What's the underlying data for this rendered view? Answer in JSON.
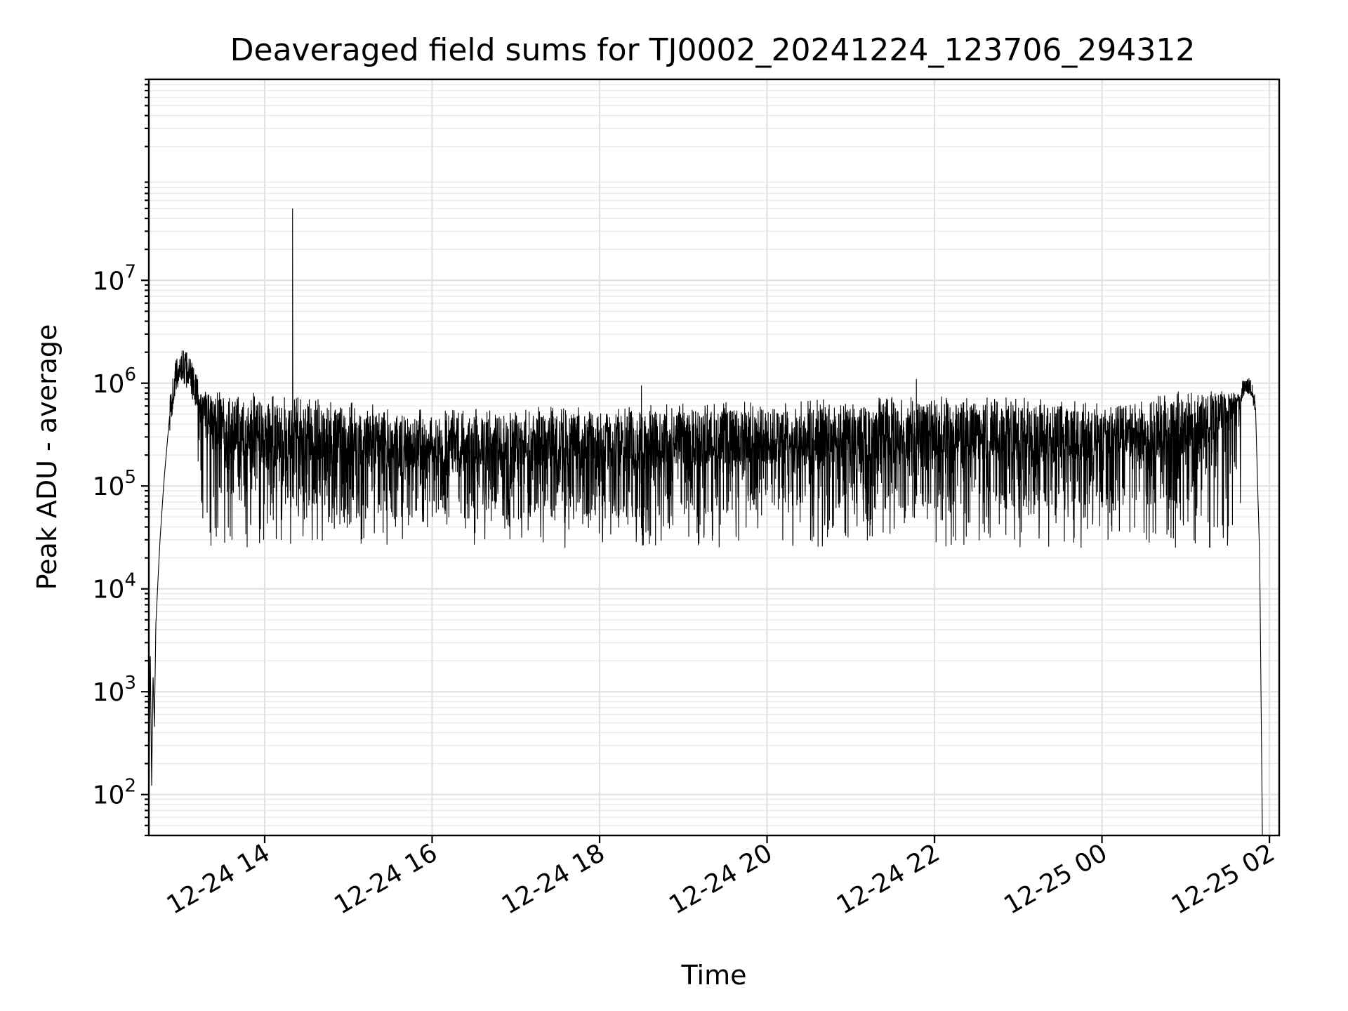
{
  "chart_data": {
    "type": "line",
    "title": "Deaveraged field sums for TJ0002_20241224_123706_294312",
    "xlabel": "Time",
    "ylabel": "Peak ADU - average",
    "y_scale": "log",
    "ylim": [
      40,
      900000000
    ],
    "xlim": [
      "2024-12-24 12:37",
      "2024-12-25 02:07"
    ],
    "grid": true,
    "grid_minor": true,
    "line_color": "#000000",
    "x_ticks": [
      {
        "value": "2024-12-24 14:00",
        "label": "12-24 14"
      },
      {
        "value": "2024-12-24 16:00",
        "label": "12-24 16"
      },
      {
        "value": "2024-12-24 18:00",
        "label": "12-24 18"
      },
      {
        "value": "2024-12-24 20:00",
        "label": "12-24 20"
      },
      {
        "value": "2024-12-24 22:00",
        "label": "12-24 22"
      },
      {
        "value": "2024-12-25 00:00",
        "label": "12-25 00"
      },
      {
        "value": "2024-12-25 02:00",
        "label": "12-25 02"
      }
    ],
    "y_ticks": [
      {
        "value": 100,
        "base": "10",
        "exp": "2"
      },
      {
        "value": 1000,
        "base": "10",
        "exp": "3"
      },
      {
        "value": 10000,
        "base": "10",
        "exp": "4"
      },
      {
        "value": 100000,
        "base": "10",
        "exp": "5"
      },
      {
        "value": 1000000,
        "base": "10",
        "exp": "6"
      },
      {
        "value": 10000000,
        "base": "10",
        "exp": "7"
      }
    ],
    "series": [
      {
        "envelope_points": [
          {
            "x": "2024-12-24 12:37",
            "y": 40
          },
          {
            "x": "2024-12-24 12:38",
            "y": 2800
          },
          {
            "x": "2024-12-24 12:39",
            "y": 120
          },
          {
            "x": "2024-12-24 12:40",
            "y": 1500
          },
          {
            "x": "2024-12-24 12:41",
            "y": 450
          },
          {
            "x": "2024-12-24 12:42",
            "y": 4500
          },
          {
            "x": "2024-12-24 12:45",
            "y": 30000
          },
          {
            "x": "2024-12-24 12:48",
            "y": 120000
          },
          {
            "x": "2024-12-24 12:52",
            "y": 500000
          },
          {
            "x": "2024-12-24 12:56",
            "y": 1100000
          },
          {
            "x": "2024-12-24 13:00",
            "y": 1500000
          },
          {
            "x": "2024-12-24 13:05",
            "y": 1300000
          },
          {
            "x": "2024-12-24 13:15",
            "y": 650000
          },
          {
            "x": "2024-12-24 13:30",
            "y": 420000
          },
          {
            "x": "2024-12-24 14:00",
            "y": 350000
          },
          {
            "x": "2024-12-24 16:00",
            "y": 250000
          },
          {
            "x": "2024-12-24 18:00",
            "y": 270000
          },
          {
            "x": "2024-12-24 20:00",
            "y": 300000
          },
          {
            "x": "2024-12-24 22:00",
            "y": 340000
          },
          {
            "x": "2024-12-25 00:00",
            "y": 310000
          },
          {
            "x": "2024-12-25 01:00",
            "y": 380000
          },
          {
            "x": "2024-12-25 01:30",
            "y": 600000
          },
          {
            "x": "2024-12-25 01:42",
            "y": 900000
          },
          {
            "x": "2024-12-25 01:46",
            "y": 950000
          },
          {
            "x": "2024-12-25 01:50",
            "y": 600000
          },
          {
            "x": "2024-12-25 01:53",
            "y": 20000
          },
          {
            "x": "2024-12-25 01:55",
            "y": 40
          }
        ],
        "spikes": [
          {
            "x": "2024-12-24 14:20",
            "y": 50000000
          },
          {
            "x": "2024-12-24 18:30",
            "y": 950000
          },
          {
            "x": "2024-12-24 21:47",
            "y": 1100000
          }
        ],
        "noise_band": {
          "upper_y": 800000,
          "lower_y": 25000
        }
      }
    ]
  }
}
